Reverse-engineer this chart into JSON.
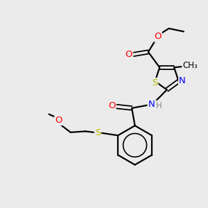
{
  "background_color": "#ebebeb",
  "bond_color": "black",
  "atom_colors": {
    "O": "#ff0000",
    "N": "#0000ff",
    "S": "#b8b800",
    "C": "black",
    "H": "#888888"
  },
  "figsize": [
    3.0,
    3.0
  ],
  "dpi": 100
}
